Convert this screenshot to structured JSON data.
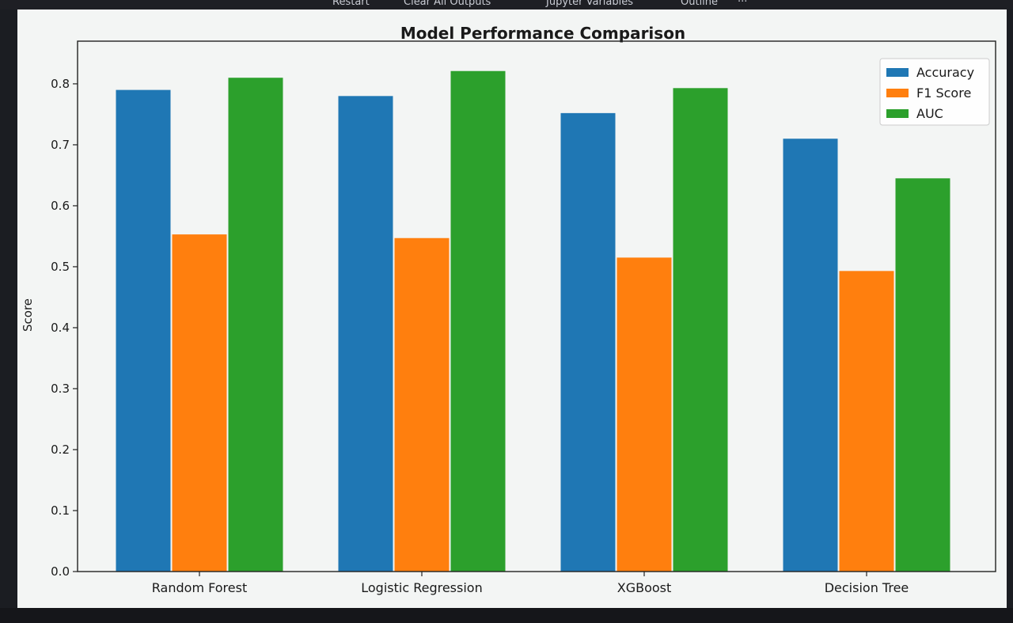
{
  "toolbar": {
    "items": [
      "Restart",
      "Clear All Outputs",
      "Jupyter Variables",
      "Outline",
      "···"
    ]
  },
  "chart_data": {
    "type": "bar",
    "title": "Model Performance Comparison",
    "xlabel": "",
    "ylabel": "Score",
    "categories": [
      "Random Forest",
      "Logistic Regression",
      "XGBoost",
      "Decision Tree"
    ],
    "series": [
      {
        "name": "Accuracy",
        "color": "#1f77b4",
        "values": [
          0.79,
          0.78,
          0.752,
          0.71
        ]
      },
      {
        "name": "F1 Score",
        "color": "#ff7f0e",
        "values": [
          0.553,
          0.547,
          0.515,
          0.493
        ]
      },
      {
        "name": "AUC",
        "color": "#2ca02c",
        "values": [
          0.81,
          0.821,
          0.793,
          0.645
        ]
      }
    ],
    "yticks": [
      "0.0",
      "0.1",
      "0.2",
      "0.3",
      "0.4",
      "0.5",
      "0.6",
      "0.7",
      "0.8"
    ],
    "ylim": [
      0,
      0.87
    ],
    "grid": false,
    "legend": "top-right"
  }
}
